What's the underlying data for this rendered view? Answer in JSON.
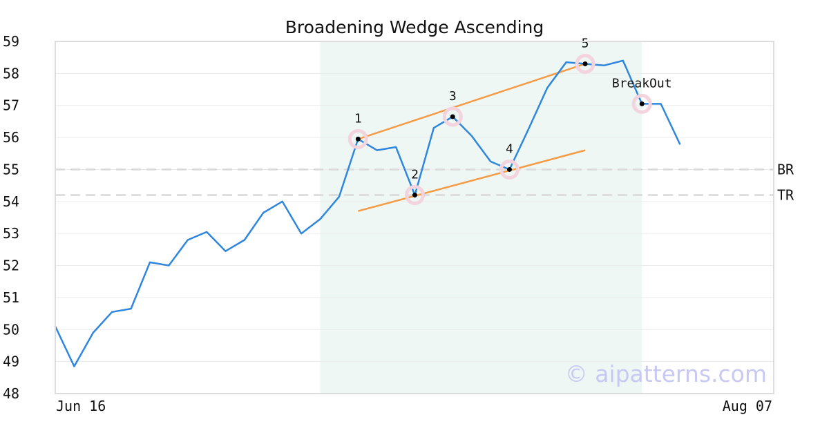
{
  "chart_data": {
    "type": "line",
    "title": "Broadening Wedge Ascending",
    "ylim": [
      48,
      59
    ],
    "y_ticks": [
      48,
      49,
      50,
      51,
      52,
      53,
      54,
      55,
      56,
      57,
      58,
      59
    ],
    "x_tick_labels": {
      "start": "Jun 16",
      "end": "Aug 07"
    },
    "grid": true,
    "watermark": "© aipatterns.com",
    "series": [
      {
        "color": "#2e86de",
        "values": [
          50.1,
          48.85,
          49.9,
          50.55,
          50.65,
          52.1,
          52.0,
          52.8,
          53.05,
          52.45,
          52.8,
          53.65,
          54.0,
          53.0,
          53.45,
          54.15,
          55.95,
          55.6,
          55.7,
          54.2,
          56.3,
          56.65,
          56.05,
          55.25,
          55.0,
          56.25,
          57.55,
          58.35,
          58.3,
          58.25,
          58.4,
          57.05,
          57.05,
          55.8
        ]
      }
    ],
    "highlight_region": {
      "x_start": 14,
      "x_end": 31,
      "color": "#eef7f3"
    },
    "trend_lines": [
      {
        "x1": 16,
        "y1": 55.95,
        "x2": 28,
        "y2": 58.3,
        "color": "#f59a45"
      },
      {
        "x1": 16,
        "y1": 53.7,
        "x2": 28,
        "y2": 55.6,
        "color": "#f59a45"
      }
    ],
    "reference_lines": [
      {
        "label": "BR",
        "y": 55.0,
        "color": "#d9d9d9"
      },
      {
        "label": "TR",
        "y": 54.2,
        "color": "#d9d9d9"
      }
    ],
    "points": [
      {
        "label": "1",
        "x": 16,
        "y": 55.95,
        "label_pos": "above"
      },
      {
        "label": "2",
        "x": 19,
        "y": 54.2,
        "label_pos": "above"
      },
      {
        "label": "3",
        "x": 21,
        "y": 56.65,
        "label_pos": "above"
      },
      {
        "label": "4",
        "x": 24,
        "y": 55.0,
        "label_pos": "above"
      },
      {
        "label": "5",
        "x": 28,
        "y": 58.3,
        "label_pos": "above"
      },
      {
        "label": "BreakOut",
        "x": 31,
        "y": 57.05,
        "label_pos": "above"
      }
    ]
  }
}
